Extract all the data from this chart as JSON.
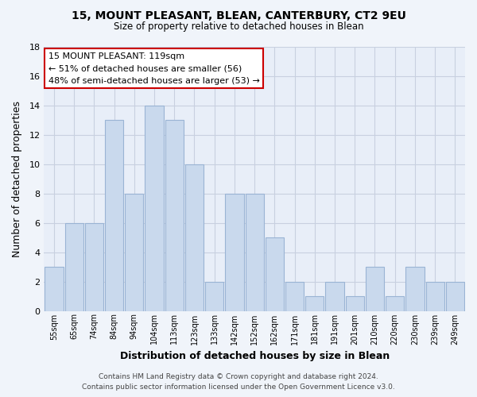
{
  "title": "15, MOUNT PLEASANT, BLEAN, CANTERBURY, CT2 9EU",
  "subtitle": "Size of property relative to detached houses in Blean",
  "xlabel": "Distribution of detached houses by size in Blean",
  "ylabel": "Number of detached properties",
  "bar_color": "#c9d9ed",
  "bar_edge_color": "#9ab4d4",
  "categories": [
    "55sqm",
    "65sqm",
    "74sqm",
    "84sqm",
    "94sqm",
    "104sqm",
    "113sqm",
    "123sqm",
    "133sqm",
    "142sqm",
    "152sqm",
    "162sqm",
    "171sqm",
    "181sqm",
    "191sqm",
    "201sqm",
    "210sqm",
    "220sqm",
    "230sqm",
    "239sqm",
    "249sqm"
  ],
  "values": [
    3,
    6,
    6,
    13,
    8,
    14,
    13,
    10,
    2,
    8,
    8,
    5,
    2,
    1,
    2,
    1,
    3,
    1,
    3,
    2,
    2
  ],
  "ylim": [
    0,
    18
  ],
  "yticks": [
    0,
    2,
    4,
    6,
    8,
    10,
    12,
    14,
    16,
    18
  ],
  "annotation_title": "15 MOUNT PLEASANT: 119sqm",
  "annotation_line1": "← 51% of detached houses are smaller (56)",
  "annotation_line2": "48% of semi-detached houses are larger (53) →",
  "annotation_box_color": "#ffffff",
  "annotation_box_edge": "#cc0000",
  "highlight_bar_index": 6,
  "footer_line1": "Contains HM Land Registry data © Crown copyright and database right 2024.",
  "footer_line2": "Contains public sector information licensed under the Open Government Licence v3.0.",
  "background_color": "#f0f4fa",
  "plot_bg_color": "#e8eef8",
  "grid_color": "#c8d0e0"
}
